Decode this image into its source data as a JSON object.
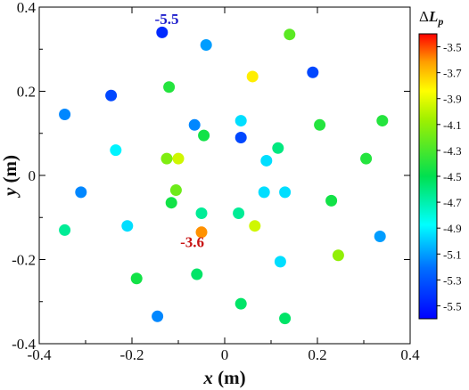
{
  "chart_data": {
    "type": "scatter",
    "title": "",
    "xlabel": "x",
    "xunit": " (m)",
    "ylabel": "y",
    "yunit": " (m)",
    "xlim": [
      -0.4,
      0.4
    ],
    "ylim": [
      -0.4,
      0.4
    ],
    "xticks": [
      "-0.4",
      "-0.2",
      "0",
      "0.2",
      "0.4"
    ],
    "yticks": [
      "0.4",
      "0.2",
      "0",
      "-0.2",
      "-0.4"
    ],
    "colorbar": {
      "title_delta": "Δ",
      "title_main": "L",
      "title_sub": "p",
      "range": [
        -5.6,
        -3.4
      ],
      "ticks": [
        "-3.5",
        "-3.7",
        "-3.9",
        "-4.1",
        "-4.3",
        "-4.5",
        "-4.7",
        "-4.9",
        "-5.1",
        "-5.3",
        "-5.5"
      ]
    },
    "annotations": [
      {
        "text": "-5.5",
        "x": -0.125,
        "y": 0.36,
        "color": "#1c1ccc"
      },
      {
        "text": "-3.6",
        "x": -0.07,
        "y": -0.17,
        "color": "#c81414"
      }
    ],
    "points": [
      {
        "x": -0.135,
        "y": 0.34,
        "v": -5.45
      },
      {
        "x": -0.04,
        "y": 0.31,
        "v": -5.1
      },
      {
        "x": 0.14,
        "y": 0.335,
        "v": -4.25
      },
      {
        "x": 0.06,
        "y": 0.235,
        "v": -3.8
      },
      {
        "x": 0.19,
        "y": 0.245,
        "v": -5.35
      },
      {
        "x": -0.245,
        "y": 0.19,
        "v": -5.35
      },
      {
        "x": -0.12,
        "y": 0.21,
        "v": -4.4
      },
      {
        "x": -0.345,
        "y": 0.145,
        "v": -5.15
      },
      {
        "x": -0.065,
        "y": 0.12,
        "v": -5.15
      },
      {
        "x": -0.045,
        "y": 0.095,
        "v": -4.45
      },
      {
        "x": 0.035,
        "y": 0.13,
        "v": -4.95
      },
      {
        "x": 0.035,
        "y": 0.09,
        "v": -5.35
      },
      {
        "x": 0.205,
        "y": 0.12,
        "v": -4.4
      },
      {
        "x": 0.34,
        "y": 0.13,
        "v": -4.4
      },
      {
        "x": -0.235,
        "y": 0.06,
        "v": -4.9
      },
      {
        "x": -0.125,
        "y": 0.04,
        "v": -4.15
      },
      {
        "x": -0.1,
        "y": 0.04,
        "v": -3.95
      },
      {
        "x": 0.115,
        "y": 0.065,
        "v": -4.6
      },
      {
        "x": 0.09,
        "y": 0.035,
        "v": -4.95
      },
      {
        "x": 0.305,
        "y": 0.04,
        "v": -4.4
      },
      {
        "x": -0.31,
        "y": -0.04,
        "v": -5.15
      },
      {
        "x": -0.105,
        "y": -0.035,
        "v": -4.2
      },
      {
        "x": -0.115,
        "y": -0.065,
        "v": -4.45
      },
      {
        "x": 0.085,
        "y": -0.04,
        "v": -4.95
      },
      {
        "x": 0.13,
        "y": -0.04,
        "v": -4.95
      },
      {
        "x": -0.05,
        "y": -0.09,
        "v": -4.65
      },
      {
        "x": 0.03,
        "y": -0.09,
        "v": -4.65
      },
      {
        "x": 0.065,
        "y": -0.12,
        "v": -3.95
      },
      {
        "x": 0.23,
        "y": -0.06,
        "v": -4.45
      },
      {
        "x": -0.345,
        "y": -0.13,
        "v": -4.65
      },
      {
        "x": -0.21,
        "y": -0.12,
        "v": -4.95
      },
      {
        "x": -0.05,
        "y": -0.135,
        "v": -3.6
      },
      {
        "x": 0.245,
        "y": -0.19,
        "v": -4.1
      },
      {
        "x": 0.335,
        "y": -0.145,
        "v": -5.1
      },
      {
        "x": 0.12,
        "y": -0.205,
        "v": -4.95
      },
      {
        "x": -0.06,
        "y": -0.235,
        "v": -4.55
      },
      {
        "x": -0.19,
        "y": -0.245,
        "v": -4.45
      },
      {
        "x": 0.035,
        "y": -0.305,
        "v": -4.55
      },
      {
        "x": -0.145,
        "y": -0.335,
        "v": -5.15
      },
      {
        "x": 0.13,
        "y": -0.34,
        "v": -4.55
      }
    ]
  }
}
